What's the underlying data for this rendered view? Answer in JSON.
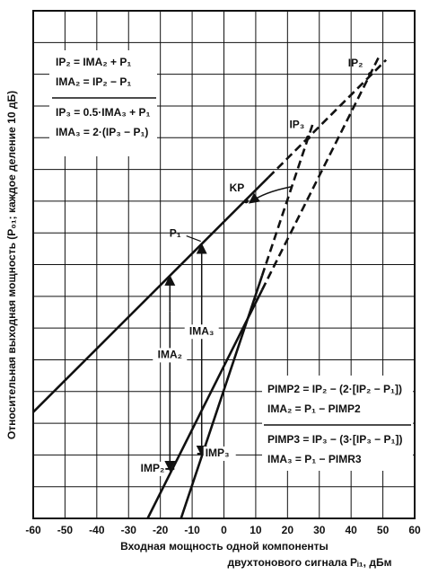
{
  "chart_data": {
    "type": "line",
    "x_label": "Входная мощность одной компоненты",
    "x_label_2": "двухтонового сигнала Pᵢ₁, дБм",
    "y_label": "Относительная выходная мощность (P₀₁; каждое деление 10 дБ)",
    "xlim": [
      -60,
      60
    ],
    "xticks": [
      -60,
      -50,
      -40,
      -30,
      -20,
      -10,
      0,
      10,
      20,
      30,
      40,
      50,
      60
    ],
    "ylim": [
      0,
      160
    ],
    "yticks": [
      0,
      10,
      20,
      30,
      40,
      50,
      60,
      70,
      80,
      90,
      100,
      110,
      120,
      130,
      140,
      150,
      160
    ],
    "grid": true,
    "color": "#111111",
    "series": [
      {
        "label": "P₁",
        "style": "solid",
        "x": [
          -60,
          14
        ],
        "values": [
          33.5,
          107.5
        ]
      },
      {
        "style": "dashed",
        "x": [
          14,
          51
        ],
        "values": [
          107.5,
          144.5
        ]
      },
      {
        "style": "solid",
        "x": [
          -24,
          12
        ],
        "values": [
          0,
          72
        ]
      },
      {
        "style": "dashed",
        "x": [
          12,
          49
        ],
        "values": [
          72,
          146
        ]
      },
      {
        "style": "solid",
        "x": [
          -13.5,
          12
        ],
        "values": [
          0,
          76.5
        ]
      },
      {
        "style": "dashed",
        "x": [
          12,
          28
        ],
        "values": [
          76.5,
          124.5
        ]
      }
    ],
    "points": [
      {
        "label": "KP",
        "x": 7,
        "y": 100
      },
      {
        "label": "IP₃",
        "x": 26.5,
        "y": 120
      },
      {
        "label": "IP₂",
        "x": 46,
        "y": 140
      }
    ],
    "arrows": [
      {
        "label": "IMA₂",
        "end_label": "IMP₂",
        "x": -17,
        "y": [
          76.5,
          15.6
        ]
      },
      {
        "label": "IMA₃",
        "end_label": "IMP₃",
        "x": -7,
        "y": [
          86.5,
          20.4
        ]
      }
    ],
    "formulas_top": [
      "IP₂ = IMA₂ + P₁",
      "IMA₂ = IP₂ − P₁",
      "IP₃ = 0.5·IMA₃ + P₁",
      "IMA₃ = 2·(IP₃ − P₁)"
    ],
    "formulas_bottom": [
      "PIMP2 = IP₂ − (2·[IP₂ − P₁])",
      "IMA₂ = P₁ − PIMP2",
      "PIMP3 = IP₃ − (3·[IP₃ − P₁])",
      "IMA₃ = P₁ − PIMR3"
    ]
  }
}
